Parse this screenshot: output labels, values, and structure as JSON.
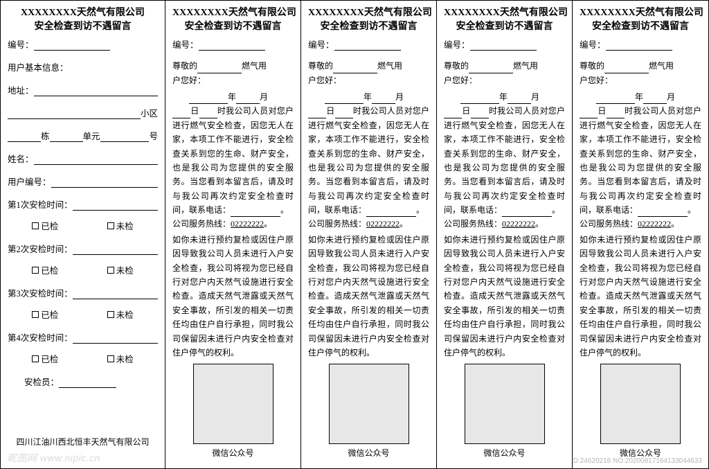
{
  "common": {
    "company_title": "XXXXXXXX天然气有限公司",
    "doc_title": "安全检查到访不遇留言",
    "serial_label": "编号："
  },
  "panelA": {
    "basic_info_label": "用户基本信息：",
    "address_label": "地址：",
    "xiaoqu_suffix": "小区",
    "dong_suffix": "栋",
    "danyuan_suffix": "单元",
    "hao_suffix": "号",
    "name_label": "姓名：",
    "user_id_label": "用户编号：",
    "check_times": [
      "第1次安检时间：",
      "第2次安检时间：",
      "第3次安检时间：",
      "第4次安检时间："
    ],
    "checked_label": "已检",
    "unchecked_label": "未检",
    "inspector_label": "安检员：",
    "footer_company": "四川江油川西北恒丰天然气有限公司"
  },
  "panelB": {
    "salutation_prefix": "尊敬的",
    "salutation_suffix": "燃气用",
    "salutation_suffix2": "户您好：",
    "year_suffix": "年",
    "month_suffix": "月",
    "day_suffix": "日",
    "hour_suffix": "时我公司人员",
    "body_main": "对您户进行燃气安全检查，因您无人在家，本项工作不能进行，安全检查关系到您的生命、财产安全，也是我公司为您提供的安全服务。当您看到本留言后，请及时与我公司再次约定安全检查时间，联系电话：",
    "hotline_label": "公司服务热线：",
    "hotline_number": "02222222",
    "period": "。",
    "body_para2": "如你未进行预约复检或因住户原因导致我公司人员未进行入户安全检查，我公司将视为您已经自行对您户内天然气设施进行安全检查。造成天然气泄露或天然气安全事故，所引发的相关一切责任均由住户自行承担，同时我公司保留因未进行户内安全检查对住户停气的权利。",
    "qr_caption": "微信公众号"
  },
  "watermark": {
    "left": "昵图网 www.nipic.cn",
    "right": "ID:24620218  NO:20200817164133044633"
  }
}
